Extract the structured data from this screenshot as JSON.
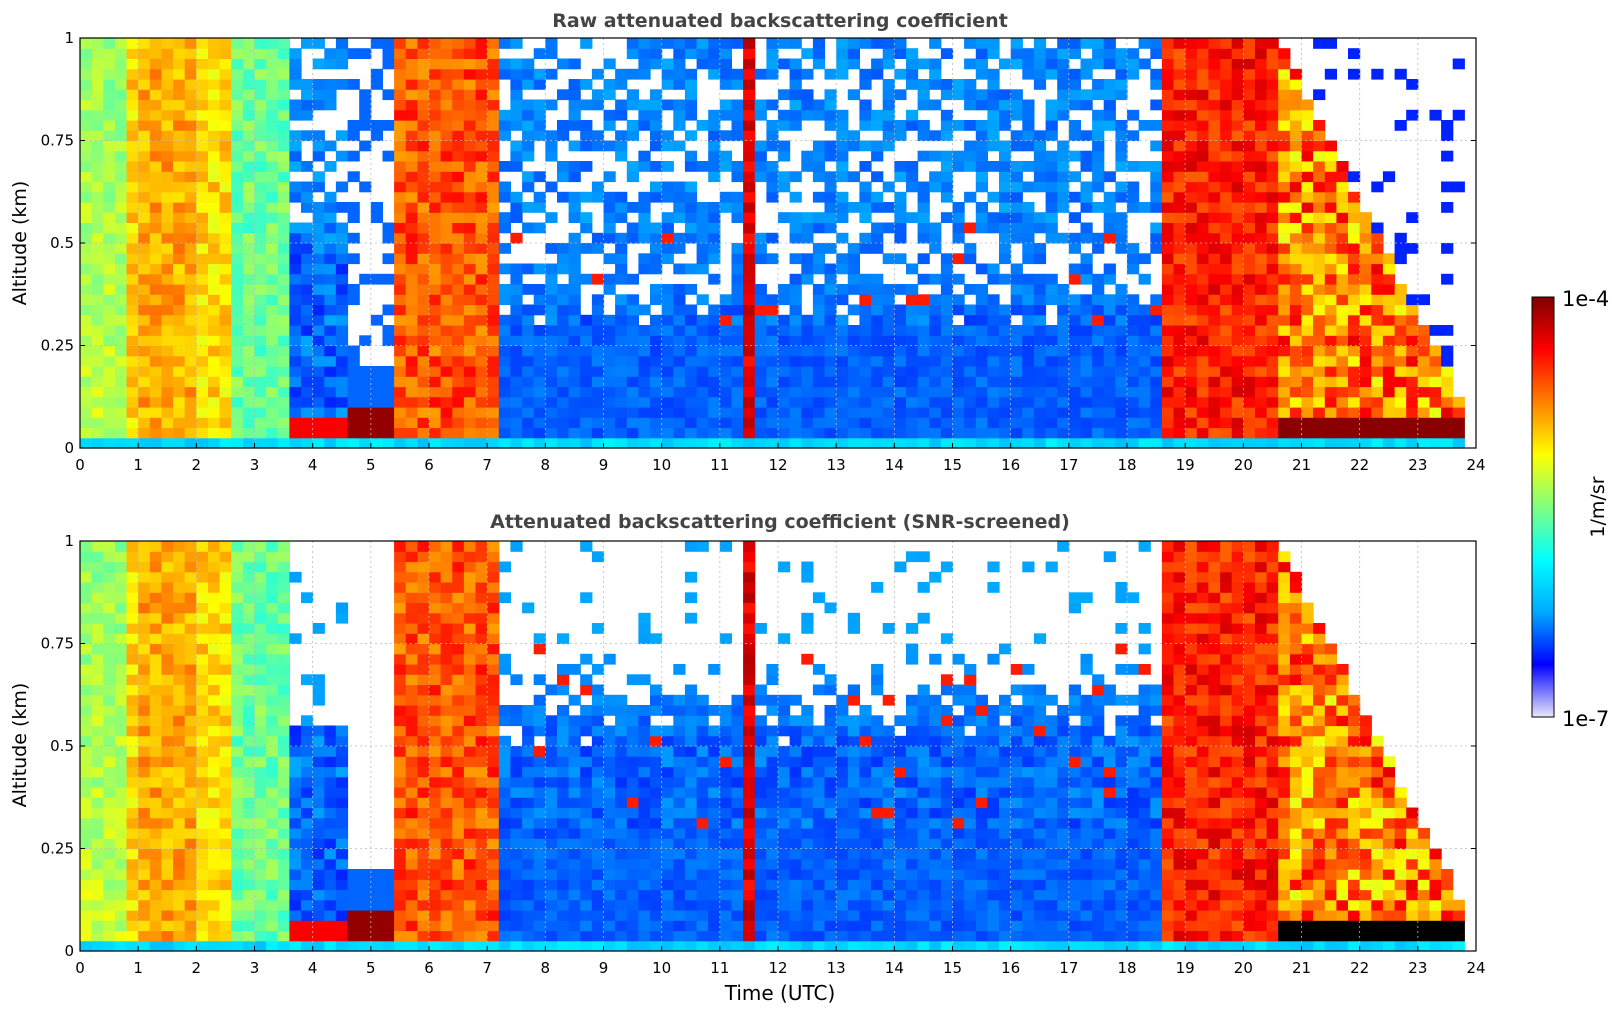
{
  "chart_data": [
    {
      "type": "heatmap",
      "title": "Raw attenuated backscattering coefficient",
      "xlabel": "",
      "ylabel": "Altitude (km)",
      "xlim": [
        0,
        24
      ],
      "ylim": [
        0,
        1
      ],
      "x_ticks": [
        "0",
        "1",
        "2",
        "3",
        "4",
        "5",
        "6",
        "7",
        "8",
        "9",
        "10",
        "11",
        "12",
        "13",
        "14",
        "15",
        "16",
        "17",
        "18",
        "19",
        "20",
        "21",
        "22",
        "23",
        "24"
      ],
      "y_ticks": [
        "0",
        "0.25",
        "0.5",
        "0.75",
        "1"
      ],
      "grid": true,
      "description_columns": [
        {
          "x0": 0.0,
          "x1": 0.85,
          "regime": "dense_aerosol"
        },
        {
          "x0": 0.85,
          "x1": 2.6,
          "regime": "dense_aerosol"
        },
        {
          "x0": 2.6,
          "x1": 3.7,
          "regime": "moderate"
        },
        {
          "x0": 3.7,
          "x1": 4.6,
          "regime": "clear_noisy"
        },
        {
          "x0": 4.6,
          "x1": 5.4,
          "regime": "low_cloud"
        },
        {
          "x0": 5.4,
          "x1": 7.2,
          "regime": "thick_cloud"
        },
        {
          "x0": 7.2,
          "x1": 11.3,
          "regime": "clear_noisy"
        },
        {
          "x0": 11.3,
          "x1": 11.7,
          "regime": "thick_cloud"
        },
        {
          "x0": 11.7,
          "x1": 18.7,
          "regime": "clear_noisy"
        },
        {
          "x0": 18.7,
          "x1": 20.6,
          "regime": "thick_cloud"
        },
        {
          "x0": 20.6,
          "x1": 23.8,
          "regime": "descending_layer"
        }
      ]
    },
    {
      "type": "heatmap",
      "title": "Attenuated backscattering coefficient (SNR-screened)",
      "xlabel": "Time (UTC)",
      "ylabel": "Altitude (km)",
      "xlim": [
        0,
        24
      ],
      "ylim": [
        0,
        1
      ],
      "x_ticks": [
        "0",
        "1",
        "2",
        "3",
        "4",
        "5",
        "6",
        "7",
        "8",
        "9",
        "10",
        "11",
        "12",
        "13",
        "14",
        "15",
        "16",
        "17",
        "18",
        "19",
        "20",
        "21",
        "22",
        "23",
        "24"
      ],
      "y_ticks": [
        "0",
        "0.25",
        "0.5",
        "0.75",
        "1"
      ],
      "grid": true
    }
  ],
  "colorbar": {
    "label": "1/m/sr",
    "max_label": "1e-4",
    "min_label": "1e-7",
    "colors": [
      "#e8e8f8",
      "#0000ff",
      "#00aaff",
      "#00ffff",
      "#80ff80",
      "#ffff00",
      "#ff8000",
      "#ff0000",
      "#800000"
    ]
  }
}
